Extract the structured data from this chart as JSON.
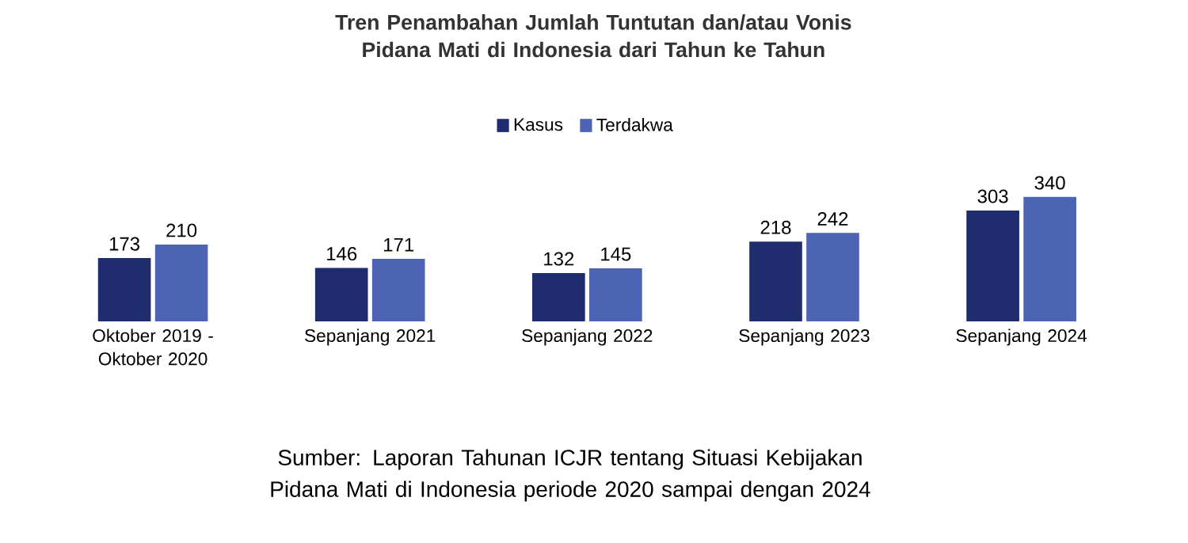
{
  "chart_data": {
    "type": "bar",
    "title": "Tren Penambahan Jumlah Tuntutan dan/atau Vonis Pidana Mati di Indonesia dari Tahun ke Tahun",
    "categories": [
      "Oktober 2019 - Oktober 2020",
      "Sepanjang 2021",
      "Sepanjang 2022",
      "Sepanjang 2023",
      "Sepanjang 2024"
    ],
    "series": [
      {
        "name": "Kasus",
        "color": "#1f2d6e",
        "values": [
          173,
          146,
          132,
          218,
          303
        ]
      },
      {
        "name": "Terdakwa",
        "color": "#4d63b3",
        "values": [
          210,
          171,
          145,
          242,
          340
        ]
      }
    ],
    "data_labels": true,
    "legend": "top",
    "annotations": [
      "Sumber: Laporan Tahunan ICJR tentang Situasi Kebijakan Pidana Mati di Indonesia periode 2020 sampai dengan 2024"
    ]
  }
}
